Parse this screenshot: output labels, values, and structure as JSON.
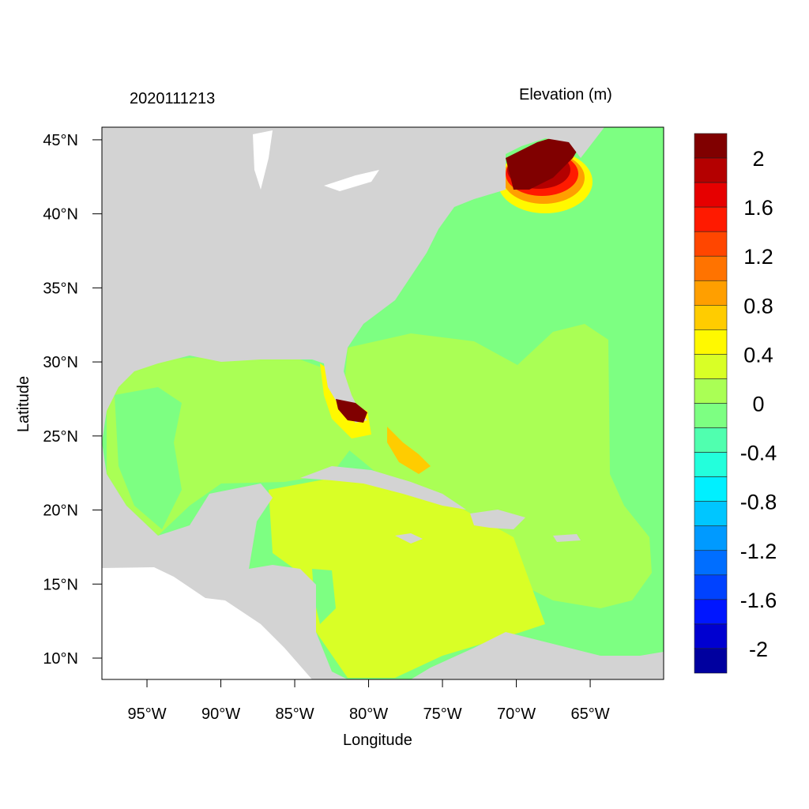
{
  "title_left": "2020111213",
  "title_right": "Elevation (m)",
  "x_axis": {
    "label": "Longitude",
    "ticks": [
      "95°W",
      "90°W",
      "85°W",
      "80°W",
      "75°W",
      "70°W",
      "65°W"
    ],
    "tick_values": [
      -95,
      -90,
      -85,
      -80,
      -75,
      -70,
      -65
    ],
    "range": [
      -98.05,
      -60.03
    ]
  },
  "y_axis": {
    "label": "Latitude",
    "ticks": [
      "45°N",
      "40°N",
      "35°N",
      "30°N",
      "25°N",
      "20°N",
      "15°N",
      "10°N"
    ],
    "tick_values": [
      45,
      40,
      35,
      30,
      25,
      20,
      15,
      10
    ],
    "range": [
      8.56,
      45.85
    ]
  },
  "colorbar": {
    "labels": [
      "2",
      "1.6",
      "1.2",
      "0.8",
      "0.4",
      "0",
      "-0.4",
      "-0.8",
      "-1.2",
      "-1.6",
      "-2"
    ],
    "colors": [
      "#800000",
      "#b40000",
      "#e60000",
      "#ff1a00",
      "#ff4600",
      "#ff7300",
      "#ff9f00",
      "#ffcc00",
      "#fff900",
      "#d9ff26",
      "#aaff55",
      "#7dff82",
      "#50ffaf",
      "#23ffdc",
      "#00f0ff",
      "#00c6ff",
      "#009aff",
      "#006eff",
      "#0042ff",
      "#0016ff",
      "#0000d0",
      "#00009f"
    ]
  },
  "colors": {
    "land": "#d3d3d3",
    "masked": "#ffffff"
  }
}
